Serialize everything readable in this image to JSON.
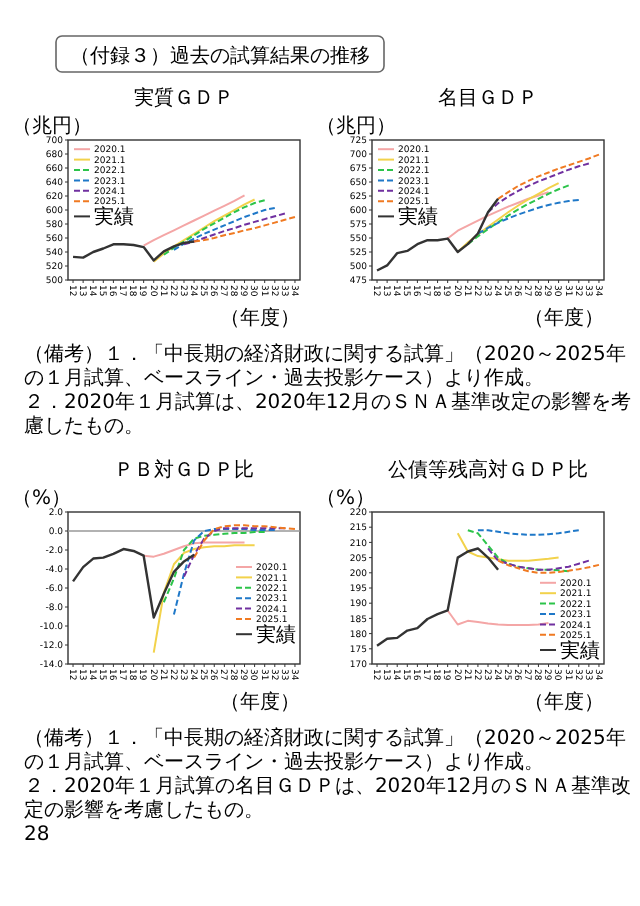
{
  "chart_data": [
    {
      "type": "other",
      "title": "（付録３）過去の試算結果の推移"
    },
    {
      "type": "line",
      "title": "実質ＧＤＰ",
      "ylabel": "（兆円）",
      "xlabel": "（年度）",
      "legend": "top left",
      "categories": [
        "12",
        "13",
        "14",
        "15",
        "16",
        "17",
        "18",
        "19",
        "20",
        "21",
        "22",
        "23",
        "24",
        "25",
        "26",
        "27",
        "28",
        "29",
        "30",
        "31",
        "32",
        "33",
        "34"
      ],
      "ylim": [
        500,
        700
      ],
      "yticks": [
        500,
        520,
        540,
        560,
        580,
        600,
        620,
        640,
        660,
        680,
        700
      ],
      "series": [
        {
          "name": "2020.1",
          "color": "#f4a6a6",
          "line_style": "solid",
          "values": [
            null,
            null,
            null,
            null,
            null,
            null,
            null,
            549,
            557,
            564,
            571,
            578,
            585,
            592,
            599,
            606,
            613,
            621,
            null,
            null,
            null,
            null,
            null
          ]
        },
        {
          "name": "2021.1",
          "color": "#f2d24b",
          "line_style": "solid",
          "values": [
            null,
            null,
            null,
            null,
            null,
            null,
            null,
            null,
            526,
            538,
            548,
            557,
            566,
            575,
            584,
            592,
            600,
            608,
            615,
            null,
            null,
            null,
            null
          ]
        },
        {
          "name": "2022.1",
          "color": "#2cc44a",
          "line_style": "dashed",
          "values": [
            null,
            null,
            null,
            null,
            null,
            null,
            null,
            null,
            null,
            536,
            546,
            555,
            564,
            573,
            581,
            589,
            597,
            604,
            610,
            614,
            null,
            null,
            null
          ]
        },
        {
          "name": "2023.1",
          "color": "#1f78c8",
          "line_style": "dashed",
          "values": [
            null,
            null,
            null,
            null,
            null,
            null,
            null,
            null,
            null,
            null,
            543,
            552,
            559,
            566,
            572,
            578,
            584,
            590,
            595,
            600,
            603,
            null,
            null
          ]
        },
        {
          "name": "2024.1",
          "color": "#7030a0",
          "line_style": "dashed",
          "values": [
            null,
            null,
            null,
            null,
            null,
            null,
            null,
            null,
            null,
            null,
            null,
            551,
            555,
            560,
            565,
            570,
            574,
            579,
            583,
            587,
            591,
            595,
            null
          ]
        },
        {
          "name": "2025.1",
          "color": "#f07a22",
          "line_style": "dashed",
          "values": [
            null,
            null,
            null,
            null,
            null,
            null,
            null,
            null,
            null,
            null,
            null,
            null,
            555,
            557,
            560,
            564,
            567,
            571,
            574,
            578,
            582,
            586,
            590
          ]
        },
        {
          "name": "実績",
          "color": "#333333",
          "line_style": "solid",
          "values": [
            533,
            532,
            540,
            545,
            551,
            551,
            550,
            547,
            528,
            541,
            548,
            553,
            555,
            null,
            null,
            null,
            null,
            null,
            null,
            null,
            null,
            null,
            null
          ]
        }
      ]
    },
    {
      "type": "line",
      "title": "名目ＧＤＰ",
      "ylabel": "（兆円）",
      "xlabel": "（年度）",
      "legend": "top left",
      "categories": [
        "12",
        "13",
        "14",
        "15",
        "16",
        "17",
        "18",
        "19",
        "20",
        "21",
        "22",
        "23",
        "24",
        "25",
        "26",
        "27",
        "28",
        "29",
        "30",
        "31",
        "32",
        "33",
        "34"
      ],
      "ylim": [
        475,
        725
      ],
      "yticks": [
        475,
        500,
        525,
        550,
        575,
        600,
        625,
        650,
        675,
        700,
        725
      ],
      "series": [
        {
          "name": "2020.1",
          "color": "#f4a6a6",
          "line_style": "solid",
          "values": [
            null,
            null,
            null,
            null,
            null,
            null,
            null,
            549,
            563,
            572,
            581,
            590,
            598,
            606,
            613,
            620,
            626,
            632,
            null,
            null,
            null,
            null,
            null
          ]
        },
        {
          "name": "2021.1",
          "color": "#f2d24b",
          "line_style": "solid",
          "values": [
            null,
            null,
            null,
            null,
            null,
            null,
            null,
            null,
            525,
            542,
            556,
            570,
            583,
            596,
            608,
            619,
            629,
            639,
            648,
            null,
            null,
            null,
            null
          ]
        },
        {
          "name": "2022.1",
          "color": "#2cc44a",
          "line_style": "dashed",
          "values": [
            null,
            null,
            null,
            null,
            null,
            null,
            null,
            null,
            null,
            539,
            553,
            566,
            578,
            590,
            601,
            611,
            620,
            629,
            637,
            644,
            null,
            null,
            null
          ]
        },
        {
          "name": "2023.1",
          "color": "#1f78c8",
          "line_style": "dashed",
          "values": [
            null,
            null,
            null,
            null,
            null,
            null,
            null,
            null,
            null,
            null,
            558,
            568,
            577,
            585,
            592,
            598,
            604,
            609,
            613,
            616,
            618,
            null,
            null
          ]
        },
        {
          "name": "2024.1",
          "color": "#7030a0",
          "line_style": "dashed",
          "values": [
            null,
            null,
            null,
            null,
            null,
            null,
            null,
            null,
            null,
            null,
            null,
            596,
            612,
            624,
            634,
            643,
            651,
            658,
            665,
            672,
            678,
            683,
            null
          ]
        },
        {
          "name": "2025.1",
          "color": "#f07a22",
          "line_style": "dashed",
          "values": [
            null,
            null,
            null,
            null,
            null,
            null,
            null,
            null,
            null,
            null,
            null,
            null,
            620,
            632,
            643,
            652,
            660,
            667,
            674,
            680,
            686,
            692,
            699
          ]
        },
        {
          "name": "実績",
          "color": "#333333",
          "line_style": "solid",
          "values": [
            492,
            501,
            523,
            527,
            539,
            546,
            546,
            549,
            525,
            539,
            558,
            596,
            620,
            null,
            null,
            null,
            null,
            null,
            null,
            null,
            null,
            null,
            null
          ]
        }
      ],
      "annotations": [
        "（備考）１．「中長期の経済財政に関する試算」（2020～2025年の１月試算、ベースライン・過去投影ケース）より作成。",
        "２．2020年１月試算は、2020年12月のＳＮＡ基準改定の影響を考慮したもの。"
      ]
    },
    {
      "type": "line",
      "title": "ＰＢ対ＧＤＰ比",
      "ylabel": "（%）",
      "xlabel": "（年度）",
      "legend": "right",
      "categories": [
        "12",
        "13",
        "14",
        "15",
        "16",
        "17",
        "18",
        "19",
        "20",
        "21",
        "22",
        "23",
        "24",
        "25",
        "26",
        "27",
        "28",
        "29",
        "30",
        "31",
        "32",
        "33",
        "34"
      ],
      "ylim": [
        -14,
        2
      ],
      "yticks": [
        {
          "value": -14,
          "label": "-14.0"
        },
        {
          "value": -12,
          "label": "-12.0"
        },
        {
          "value": -10,
          "label": "-10.0"
        },
        {
          "value": -8,
          "label": "-8.0"
        },
        {
          "value": -6,
          "label": "-6.0"
        },
        {
          "value": -4,
          "label": "-4.0"
        },
        {
          "value": -2,
          "label": "-2.0"
        },
        {
          "value": 0,
          "label": "0.0"
        },
        {
          "value": 2,
          "label": "2.0"
        }
      ],
      "ref_lines": [
        {
          "axis": "y",
          "value": 0,
          "color": "#999999"
        }
      ],
      "series": [
        {
          "name": "2020.1",
          "color": "#f4a6a6",
          "line_style": "solid",
          "values": [
            null,
            null,
            null,
            null,
            null,
            null,
            null,
            -2.6,
            -2.7,
            -2.4,
            -2.0,
            -1.6,
            -1.3,
            -1.2,
            -1.2,
            -1.2,
            -1.2,
            -1.2,
            null,
            null,
            null,
            null,
            null
          ]
        },
        {
          "name": "2021.1",
          "color": "#f2d24b",
          "line_style": "solid",
          "values": [
            null,
            null,
            null,
            null,
            null,
            null,
            null,
            null,
            -12.8,
            -6.5,
            -3.5,
            -2.3,
            -1.9,
            -1.7,
            -1.6,
            -1.6,
            -1.5,
            -1.5,
            -1.5,
            null,
            null,
            null,
            null
          ]
        },
        {
          "name": "2022.1",
          "color": "#2cc44a",
          "line_style": "dashed",
          "values": [
            null,
            null,
            null,
            null,
            null,
            null,
            null,
            null,
            null,
            -7.5,
            -5.0,
            -2.0,
            -0.8,
            -0.5,
            -0.4,
            -0.3,
            -0.2,
            -0.2,
            -0.1,
            -0.1,
            null,
            null,
            null
          ]
        },
        {
          "name": "2023.1",
          "color": "#1f78c8",
          "line_style": "dashed",
          "values": [
            null,
            null,
            null,
            null,
            null,
            null,
            null,
            null,
            null,
            null,
            -8.8,
            -4.5,
            -1.0,
            0.0,
            0.2,
            0.2,
            0.2,
            0.2,
            0.1,
            0.1,
            0.1,
            null,
            null
          ]
        },
        {
          "name": "2024.1",
          "color": "#7030a0",
          "line_style": "dashed",
          "values": [
            null,
            null,
            null,
            null,
            null,
            null,
            null,
            null,
            null,
            null,
            null,
            -4.8,
            -2.5,
            -0.8,
            0.0,
            0.3,
            0.3,
            0.3,
            0.3,
            0.3,
            0.3,
            0.3,
            null
          ]
        },
        {
          "name": "2025.1",
          "color": "#f07a22",
          "line_style": "dashed",
          "values": [
            null,
            null,
            null,
            null,
            null,
            null,
            null,
            null,
            null,
            null,
            null,
            null,
            -2.8,
            -1.0,
            0.2,
            0.5,
            0.6,
            0.6,
            0.5,
            0.5,
            0.4,
            0.3,
            0.2
          ]
        },
        {
          "name": "実績",
          "color": "#333333",
          "line_style": "solid",
          "values": [
            -5.3,
            -3.8,
            -2.9,
            -2.8,
            -2.4,
            -1.9,
            -2.1,
            -2.6,
            -9.1,
            -6.6,
            -4.3,
            -3.2,
            -2.5,
            null,
            null,
            null,
            null,
            null,
            null,
            null,
            null,
            null,
            null
          ]
        }
      ]
    },
    {
      "type": "line",
      "title": "公債等残高対ＧＤＰ比",
      "ylabel": "（%）",
      "xlabel": "（年度）",
      "legend": "bottom right",
      "categories": [
        "12",
        "13",
        "14",
        "15",
        "16",
        "17",
        "18",
        "19",
        "20",
        "21",
        "22",
        "23",
        "24",
        "25",
        "26",
        "27",
        "28",
        "29",
        "30",
        "31",
        "32",
        "33",
        "34"
      ],
      "ylim": [
        170,
        220
      ],
      "yticks": [
        170,
        175,
        180,
        185,
        190,
        195,
        200,
        205,
        210,
        215,
        220
      ],
      "series": [
        {
          "name": "2020.1",
          "color": "#f4a6a6",
          "line_style": "solid",
          "values": [
            null,
            null,
            null,
            null,
            null,
            null,
            null,
            187.6,
            183,
            184.2,
            183.8,
            183.3,
            183,
            182.8,
            182.8,
            182.8,
            183,
            183.5,
            null,
            null,
            null,
            null,
            null
          ]
        },
        {
          "name": "2021.1",
          "color": "#f2d24b",
          "line_style": "solid",
          "values": [
            null,
            null,
            null,
            null,
            null,
            null,
            null,
            null,
            213,
            207,
            205.5,
            205,
            204.5,
            204,
            204,
            204,
            204.3,
            204.6,
            205,
            null,
            null,
            null,
            null
          ]
        },
        {
          "name": "2022.1",
          "color": "#2cc44a",
          "line_style": "dashed",
          "values": [
            null,
            null,
            null,
            null,
            null,
            null,
            null,
            null,
            null,
            214,
            213,
            209,
            205,
            203,
            202,
            201.5,
            201,
            201,
            200.8,
            200.5,
            null,
            null,
            null
          ]
        },
        {
          "name": "2023.1",
          "color": "#1f78c8",
          "line_style": "dashed",
          "values": [
            null,
            null,
            null,
            null,
            null,
            null,
            null,
            null,
            null,
            null,
            214,
            214,
            213.5,
            213,
            212.7,
            212.5,
            212.5,
            212.7,
            213,
            213.5,
            214,
            null,
            null
          ]
        },
        {
          "name": "2024.1",
          "color": "#7030a0",
          "line_style": "dashed",
          "values": [
            null,
            null,
            null,
            null,
            null,
            null,
            null,
            null,
            null,
            null,
            null,
            208,
            204,
            203,
            202,
            201.5,
            201,
            201,
            201.5,
            202,
            203,
            204,
            null
          ]
        },
        {
          "name": "2025.1",
          "color": "#f07a22",
          "line_style": "dashed",
          "values": [
            null,
            null,
            null,
            null,
            null,
            null,
            null,
            null,
            null,
            null,
            null,
            null,
            204,
            202.5,
            201.5,
            200.5,
            200,
            200,
            200.3,
            200.7,
            201.2,
            201.8,
            202.6
          ]
        },
        {
          "name": "実績",
          "color": "#333333",
          "line_style": "solid",
          "values": [
            176,
            178.3,
            178.6,
            181,
            181.8,
            184.8,
            186.4,
            187.6,
            205,
            207,
            208,
            205,
            201,
            null,
            null,
            null,
            null,
            null,
            null,
            null,
            null,
            null,
            null
          ]
        }
      ],
      "annotations": [
        "（備考）１．「中長期の経済財政に関する試算」（2020～2025年の１月試算、ベースライン・過去投影ケース）より作成。",
        "２．2020年１月試算の名目ＧＤＰは、2020年12月のＳＮＡ基準改定の影響を考慮したもの。",
        "28"
      ]
    }
  ]
}
